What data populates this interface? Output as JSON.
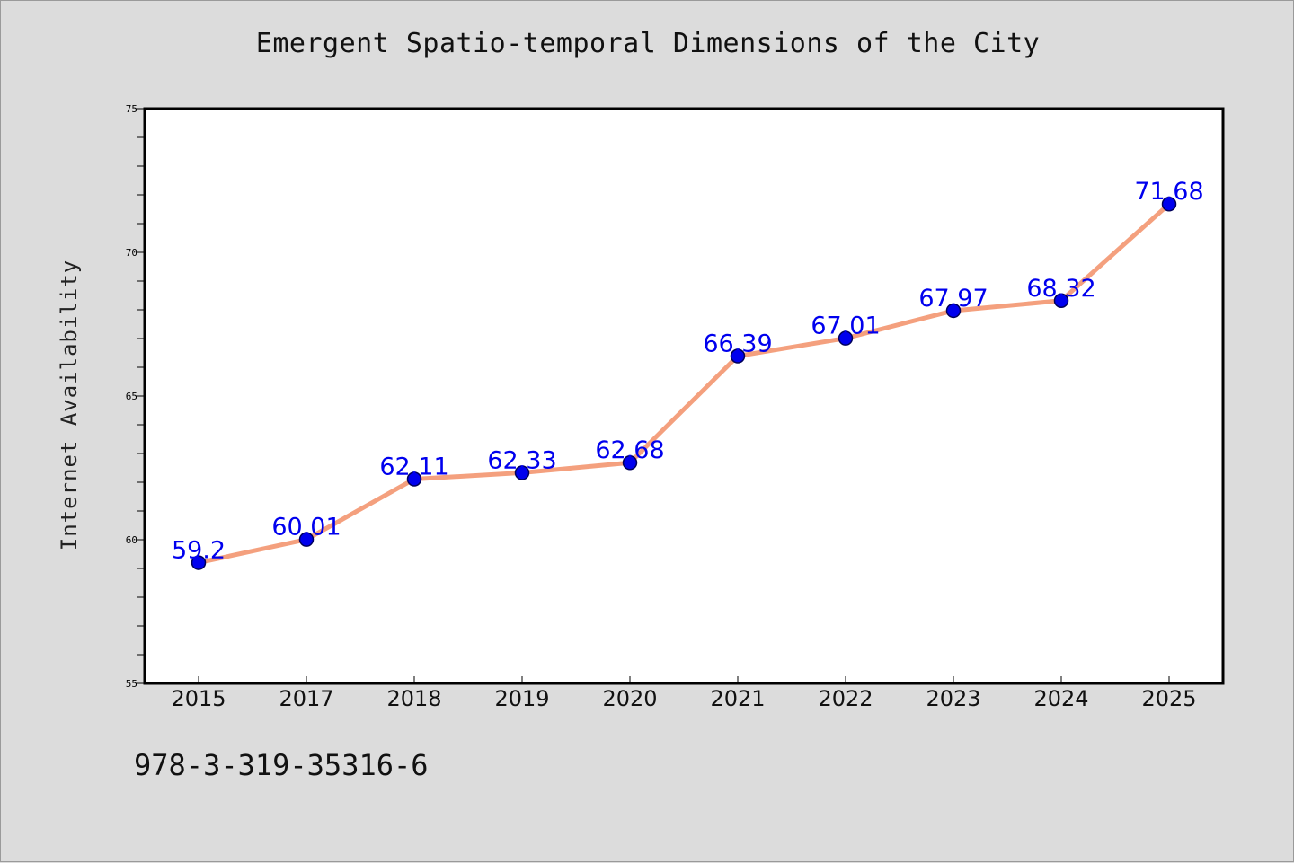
{
  "chart_data": {
    "type": "line",
    "title": "Emergent Spatio-temporal Dimensions of the City",
    "ylabel": "Internet Availability",
    "xlabel": "",
    "categories": [
      "2015",
      "2017",
      "2018",
      "2019",
      "2020",
      "2021",
      "2022",
      "2023",
      "2024",
      "2025"
    ],
    "series": [
      {
        "values": [
          59.2,
          60.01,
          62.11,
          62.33,
          62.68,
          66.39,
          67.01,
          67.97,
          68.32,
          71.68
        ],
        "labels": [
          "59.2",
          "60.01",
          "62.11",
          "62.33",
          "62.68",
          "66.39",
          "67.01",
          "67.97",
          "68.32",
          "71.68"
        ]
      }
    ],
    "ylim": [
      55,
      75
    ],
    "yticks": [
      55,
      60,
      65,
      70,
      75
    ],
    "grid": false,
    "colors": {
      "line": "#f4a07e",
      "marker": "#0000ee",
      "marker_edge": "#00005a",
      "data_label": "#0000ee",
      "background": "#dcdcdc",
      "plot_background": "#ffffff"
    }
  },
  "footer": {
    "text": "978-3-319-35316-6"
  }
}
